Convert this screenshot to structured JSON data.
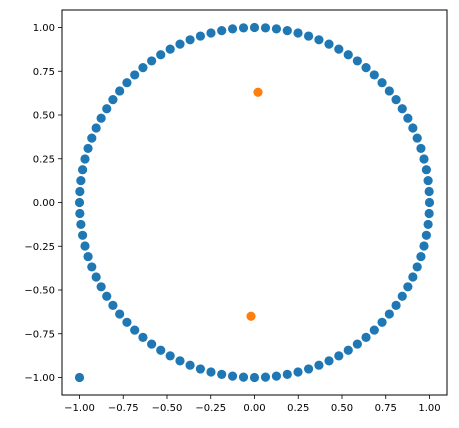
{
  "chart_data": {
    "type": "scatter",
    "title": "",
    "xlabel": "",
    "ylabel": "",
    "xlim": [
      -1.1,
      1.1
    ],
    "ylim": [
      -1.1,
      1.1
    ],
    "grid": false,
    "xticks": [
      -1.0,
      -0.75,
      -0.5,
      -0.25,
      0.0,
      0.25,
      0.5,
      0.75,
      1.0
    ],
    "yticks": [
      -1.0,
      -0.75,
      -0.5,
      -0.25,
      0.0,
      0.25,
      0.5,
      0.75,
      1.0
    ],
    "xtick_labels": [
      "−1.00",
      "−0.75",
      "−0.50",
      "−0.25",
      "0.00",
      "0.25",
      "0.50",
      "0.75",
      "1.00"
    ],
    "ytick_labels": [
      "−1.00",
      "−0.75",
      "−0.50",
      "−0.25",
      "0.00",
      "0.25",
      "0.50",
      "0.75",
      "1.00"
    ],
    "series": [
      {
        "color": "#1f77b4",
        "points_on_unit_circle": 100,
        "points_description": "evenly spaced points on the unit circle x=cos(t), y=sin(t)",
        "extra_points": [
          [
            -1.0,
            -1.0
          ]
        ]
      },
      {
        "color": "#ff7f0e",
        "points": [
          [
            0.02,
            0.63
          ],
          [
            -0.02,
            -0.65
          ]
        ]
      }
    ]
  }
}
